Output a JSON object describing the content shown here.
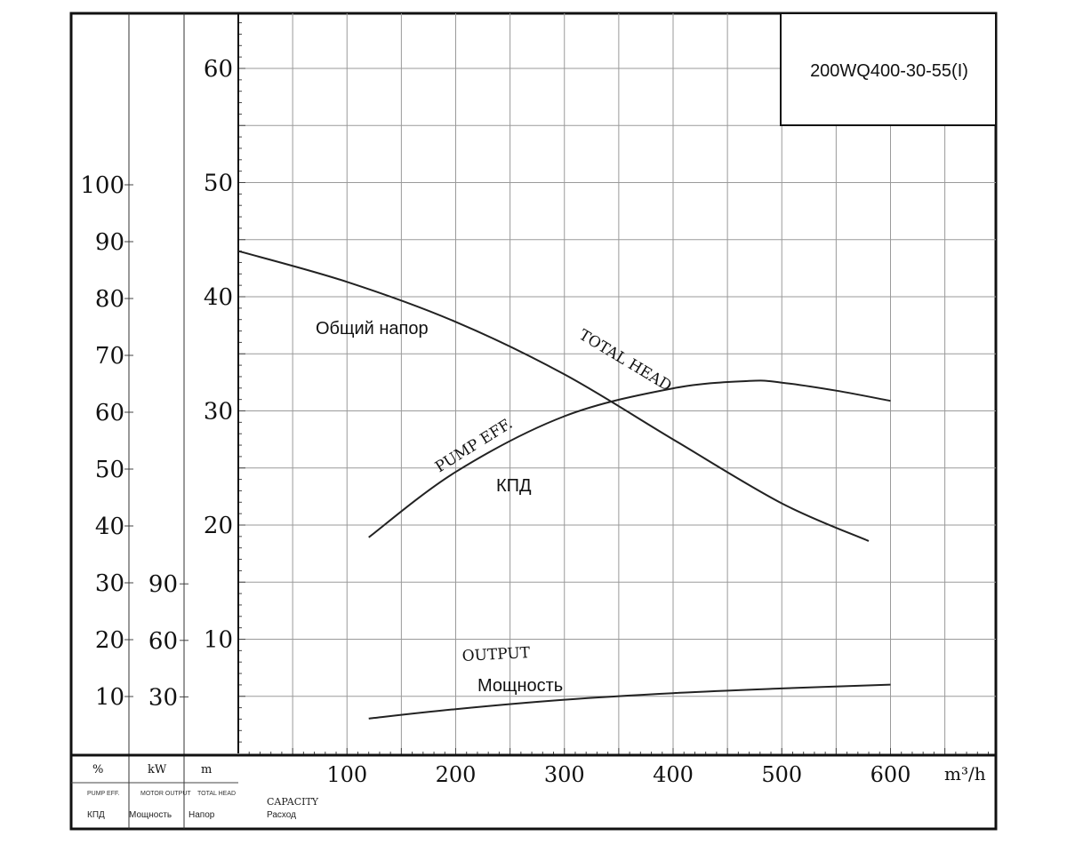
{
  "chart_data": {
    "type": "line",
    "model": "200WQ400-30-55(I)",
    "x": {
      "ticks": [
        100,
        200,
        300,
        400,
        500,
        600
      ],
      "unit": "m³/h",
      "label_en": "CAPACITY",
      "label_ru": "Расход",
      "range": [
        0,
        700
      ]
    },
    "axes": {
      "efficiency": {
        "unit": "%",
        "label_en": "PUMP EFF.",
        "label_ru": "КПД",
        "ticks": [
          10,
          20,
          30,
          40,
          50,
          60,
          70,
          80,
          90,
          100
        ],
        "range": [
          0,
          100
        ]
      },
      "power": {
        "unit": "kW",
        "label_en": "MOTOR OUTPUT",
        "label_ru": "Мощность",
        "ticks": [
          30,
          60,
          90
        ],
        "range": [
          0,
          200
        ]
      },
      "head": {
        "unit": "m",
        "label_en": "TOTAL HEAD",
        "label_ru": "Напор",
        "ticks": [
          10,
          20,
          30,
          40,
          50,
          60
        ],
        "range": [
          0,
          66
        ]
      }
    },
    "series": [
      {
        "name": "TOTAL HEAD",
        "name_ru": "Общий напор",
        "axis": "head",
        "color": "#222222",
        "points": [
          [
            0,
            44
          ],
          [
            100,
            41.3
          ],
          [
            200,
            37.8
          ],
          [
            300,
            33.2
          ],
          [
            400,
            27.5
          ],
          [
            500,
            21.9
          ],
          [
            580,
            18.6
          ]
        ]
      },
      {
        "name": "PUMP EFF.",
        "name_ru": "КПД",
        "axis": "efficiency",
        "color": "#222222",
        "points": [
          [
            120,
            38
          ],
          [
            200,
            49.5
          ],
          [
            300,
            59.3
          ],
          [
            400,
            64.2
          ],
          [
            470,
            65.5
          ],
          [
            500,
            65.2
          ],
          [
            550,
            63.8
          ],
          [
            600,
            62
          ]
        ]
      },
      {
        "name": "OUTPUT",
        "name_ru": "Мощность",
        "axis": "power",
        "color": "#222222",
        "points": [
          [
            120,
            18.5
          ],
          [
            200,
            23.5
          ],
          [
            300,
            28.5
          ],
          [
            400,
            32
          ],
          [
            500,
            34.5
          ],
          [
            600,
            36.5
          ]
        ]
      }
    ],
    "grid": true
  },
  "footer": {
    "pct": "%",
    "kw": "kW",
    "m": "m",
    "eff_small": "PUMP EFF.",
    "motor_small": "MOTOR OUTPUT",
    "head_small": "TOTAL HEAD",
    "eff_ru": "КПД",
    "power_ru": "Мощность",
    "head_ru": "Напор",
    "capacity_en": "CAPACITY",
    "capacity_ru": "Расход"
  }
}
